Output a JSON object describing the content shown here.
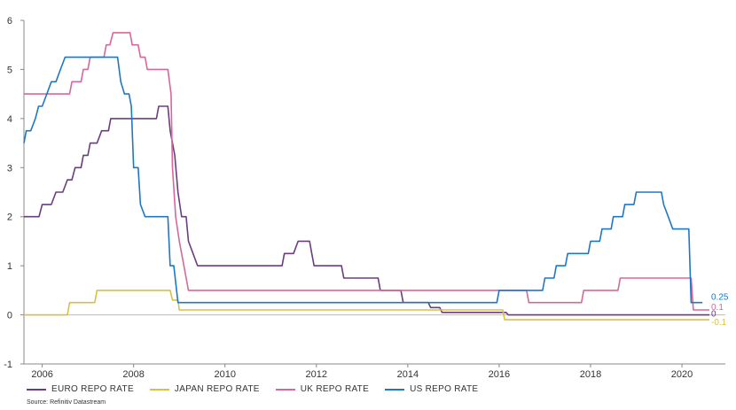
{
  "chart_data": {
    "type": "line",
    "title": "",
    "xlabel": "",
    "ylabel": "",
    "xlim": [
      2005.6,
      2020.95
    ],
    "ylim": [
      -1,
      6
    ],
    "x_ticks": [
      "2006",
      "2008",
      "2010",
      "2012",
      "2014",
      "2016",
      "2018",
      "2020"
    ],
    "y_ticks": [
      "-1",
      "0",
      "1",
      "2",
      "3",
      "4",
      "5",
      "6"
    ],
    "legend_position": "bottom-left",
    "grid": false,
    "series": [
      {
        "name": "EURO REPO RATE",
        "color": "#6b3d7f",
        "end_label": "0",
        "points": [
          [
            2005.6,
            2.0
          ],
          [
            2005.93,
            2.0
          ],
          [
            2006.0,
            2.25
          ],
          [
            2006.2,
            2.25
          ],
          [
            2006.3,
            2.5
          ],
          [
            2006.45,
            2.5
          ],
          [
            2006.55,
            2.75
          ],
          [
            2006.65,
            2.75
          ],
          [
            2006.72,
            3.0
          ],
          [
            2006.85,
            3.0
          ],
          [
            2006.9,
            3.25
          ],
          [
            2007.0,
            3.25
          ],
          [
            2007.05,
            3.5
          ],
          [
            2007.2,
            3.5
          ],
          [
            2007.3,
            3.75
          ],
          [
            2007.45,
            3.75
          ],
          [
            2007.5,
            4.0
          ],
          [
            2008.5,
            4.0
          ],
          [
            2008.55,
            4.25
          ],
          [
            2008.75,
            4.25
          ],
          [
            2008.8,
            3.75
          ],
          [
            2008.9,
            3.25
          ],
          [
            2008.97,
            2.5
          ],
          [
            2009.05,
            2.0
          ],
          [
            2009.15,
            2.0
          ],
          [
            2009.2,
            1.5
          ],
          [
            2009.3,
            1.25
          ],
          [
            2009.4,
            1.0
          ],
          [
            2011.25,
            1.0
          ],
          [
            2011.3,
            1.25
          ],
          [
            2011.5,
            1.25
          ],
          [
            2011.6,
            1.5
          ],
          [
            2011.85,
            1.5
          ],
          [
            2011.9,
            1.25
          ],
          [
            2011.95,
            1.0
          ],
          [
            2012.55,
            1.0
          ],
          [
            2012.6,
            0.75
          ],
          [
            2013.35,
            0.75
          ],
          [
            2013.4,
            0.5
          ],
          [
            2013.85,
            0.5
          ],
          [
            2013.9,
            0.25
          ],
          [
            2014.45,
            0.25
          ],
          [
            2014.5,
            0.15
          ],
          [
            2014.7,
            0.15
          ],
          [
            2014.75,
            0.05
          ],
          [
            2016.15,
            0.05
          ],
          [
            2016.2,
            0.0
          ],
          [
            2020.6,
            0.0
          ]
        ]
      },
      {
        "name": "JAPAN REPO RATE",
        "color": "#d9bf4a",
        "end_label": "-0.1",
        "points": [
          [
            2005.6,
            0.0
          ],
          [
            2006.55,
            0.0
          ],
          [
            2006.6,
            0.25
          ],
          [
            2007.15,
            0.25
          ],
          [
            2007.2,
            0.5
          ],
          [
            2008.8,
            0.5
          ],
          [
            2008.85,
            0.3
          ],
          [
            2008.97,
            0.3
          ],
          [
            2009.0,
            0.1
          ],
          [
            2016.08,
            0.1
          ],
          [
            2016.12,
            -0.1
          ],
          [
            2020.6,
            -0.1
          ]
        ]
      },
      {
        "name": "UK REPO RATE",
        "color": "#d7679a",
        "end_label": "0.1",
        "points": [
          [
            2005.6,
            4.5
          ],
          [
            2006.6,
            4.5
          ],
          [
            2006.65,
            4.75
          ],
          [
            2006.85,
            4.75
          ],
          [
            2006.9,
            5.0
          ],
          [
            2007.0,
            5.0
          ],
          [
            2007.05,
            5.25
          ],
          [
            2007.35,
            5.25
          ],
          [
            2007.4,
            5.5
          ],
          [
            2007.48,
            5.5
          ],
          [
            2007.55,
            5.75
          ],
          [
            2007.92,
            5.75
          ],
          [
            2007.97,
            5.5
          ],
          [
            2008.1,
            5.5
          ],
          [
            2008.15,
            5.25
          ],
          [
            2008.25,
            5.25
          ],
          [
            2008.3,
            5.0
          ],
          [
            2008.75,
            5.0
          ],
          [
            2008.82,
            4.5
          ],
          [
            2008.85,
            3.0
          ],
          [
            2008.92,
            2.0
          ],
          [
            2009.0,
            1.5
          ],
          [
            2009.1,
            1.0
          ],
          [
            2009.2,
            0.5
          ],
          [
            2016.6,
            0.5
          ],
          [
            2016.65,
            0.25
          ],
          [
            2017.8,
            0.25
          ],
          [
            2017.85,
            0.5
          ],
          [
            2018.6,
            0.5
          ],
          [
            2018.65,
            0.75
          ],
          [
            2020.2,
            0.75
          ],
          [
            2020.25,
            0.1
          ],
          [
            2020.6,
            0.1
          ]
        ]
      },
      {
        "name": "US REPO RATE",
        "color": "#1f77c4",
        "end_label": "0.25",
        "points": [
          [
            2005.6,
            3.5
          ],
          [
            2005.65,
            3.75
          ],
          [
            2005.75,
            3.75
          ],
          [
            2005.85,
            4.0
          ],
          [
            2005.92,
            4.25
          ],
          [
            2006.0,
            4.25
          ],
          [
            2006.1,
            4.5
          ],
          [
            2006.2,
            4.75
          ],
          [
            2006.3,
            4.75
          ],
          [
            2006.4,
            5.0
          ],
          [
            2006.5,
            5.25
          ],
          [
            2007.65,
            5.25
          ],
          [
            2007.72,
            4.75
          ],
          [
            2007.8,
            4.5
          ],
          [
            2007.9,
            4.5
          ],
          [
            2007.95,
            4.25
          ],
          [
            2008.0,
            3.0
          ],
          [
            2008.1,
            3.0
          ],
          [
            2008.15,
            2.25
          ],
          [
            2008.25,
            2.0
          ],
          [
            2008.75,
            2.0
          ],
          [
            2008.8,
            1.0
          ],
          [
            2008.88,
            1.0
          ],
          [
            2008.97,
            0.25
          ],
          [
            2015.95,
            0.25
          ],
          [
            2016.0,
            0.5
          ],
          [
            2016.95,
            0.5
          ],
          [
            2017.0,
            0.75
          ],
          [
            2017.2,
            0.75
          ],
          [
            2017.25,
            1.0
          ],
          [
            2017.45,
            1.0
          ],
          [
            2017.5,
            1.25
          ],
          [
            2017.95,
            1.25
          ],
          [
            2018.0,
            1.5
          ],
          [
            2018.2,
            1.5
          ],
          [
            2018.25,
            1.75
          ],
          [
            2018.45,
            1.75
          ],
          [
            2018.5,
            2.0
          ],
          [
            2018.7,
            2.0
          ],
          [
            2018.75,
            2.25
          ],
          [
            2018.95,
            2.25
          ],
          [
            2019.0,
            2.5
          ],
          [
            2019.55,
            2.5
          ],
          [
            2019.6,
            2.25
          ],
          [
            2019.7,
            2.0
          ],
          [
            2019.8,
            1.75
          ],
          [
            2020.15,
            1.75
          ],
          [
            2020.2,
            0.25
          ],
          [
            2020.45,
            0.25
          ]
        ]
      }
    ]
  },
  "source_text": "Source: Refinitiv Datastream"
}
